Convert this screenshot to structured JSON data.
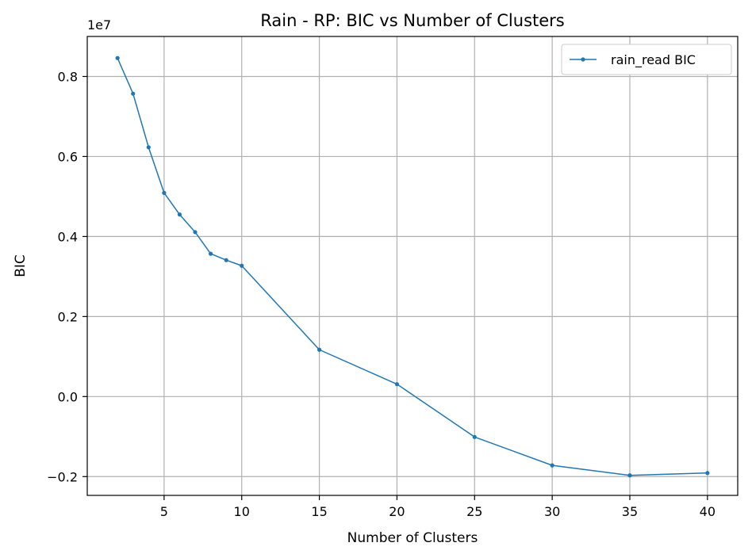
{
  "chart_data": {
    "type": "line",
    "title": "Rain - RP: BIC vs Number of Clusters",
    "xlabel": "Number of Clusters",
    "ylabel": "BIC",
    "y_offset_text": "1e7",
    "y_scale": 10000000,
    "xlim": [
      0.05,
      41.95
    ],
    "ylim": [
      -0.247,
      0.9
    ],
    "x_ticks": [
      5,
      10,
      15,
      20,
      25,
      30,
      35,
      40
    ],
    "x_tick_labels": [
      "5",
      "10",
      "15",
      "20",
      "25",
      "30",
      "35",
      "40"
    ],
    "y_ticks": [
      -0.2,
      0.0,
      0.2,
      0.4,
      0.6,
      0.8
    ],
    "y_tick_labels": [
      "−0.2",
      "0.0",
      "0.2",
      "0.4",
      "0.6",
      "0.8"
    ],
    "grid": true,
    "legend_position": "top-right",
    "series": [
      {
        "name": "rain_read BIC",
        "color": "#1f77b4",
        "x": [
          2,
          3,
          4,
          5,
          6,
          7,
          8,
          9,
          10,
          15,
          20,
          25,
          30,
          35,
          40
        ],
        "y": [
          0.846,
          0.757,
          0.623,
          0.509,
          0.455,
          0.411,
          0.357,
          0.341,
          0.327,
          0.117,
          0.031,
          -0.101,
          -0.172,
          -0.197,
          -0.191
        ]
      }
    ]
  }
}
